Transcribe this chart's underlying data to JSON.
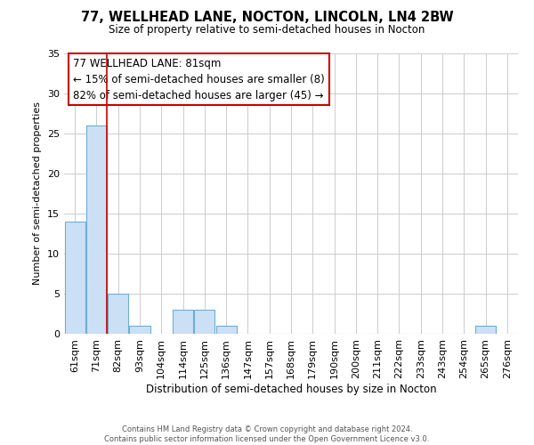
{
  "title": "77, WELLHEAD LANE, NOCTON, LINCOLN, LN4 2BW",
  "subtitle": "Size of property relative to semi-detached houses in Nocton",
  "xlabel": "Distribution of semi-detached houses by size in Nocton",
  "ylabel": "Number of semi-detached properties",
  "bin_labels": [
    "61sqm",
    "71sqm",
    "82sqm",
    "93sqm",
    "104sqm",
    "114sqm",
    "125sqm",
    "136sqm",
    "147sqm",
    "157sqm",
    "168sqm",
    "179sqm",
    "190sqm",
    "200sqm",
    "211sqm",
    "222sqm",
    "233sqm",
    "243sqm",
    "254sqm",
    "265sqm",
    "276sqm"
  ],
  "bin_counts": [
    14,
    26,
    5,
    1,
    0,
    3,
    3,
    1,
    0,
    0,
    0,
    0,
    0,
    0,
    0,
    0,
    0,
    0,
    0,
    1,
    0
  ],
  "bar_color": "#cce0f5",
  "bar_edge_color": "#6baed6",
  "highlight_line_color": "#cc0000",
  "annotation_title": "77 WELLHEAD LANE: 81sqm",
  "annotation_line1": "← 15% of semi-detached houses are smaller (8)",
  "annotation_line2": "82% of semi-detached houses are larger (45) →",
  "ylim": [
    0,
    35
  ],
  "yticks": [
    0,
    5,
    10,
    15,
    20,
    25,
    30,
    35
  ],
  "footer_line1": "Contains HM Land Registry data © Crown copyright and database right 2024.",
  "footer_line2": "Contains public sector information licensed under the Open Government Licence v3.0.",
  "bg_color": "#ffffff",
  "grid_color": "#cccccc"
}
